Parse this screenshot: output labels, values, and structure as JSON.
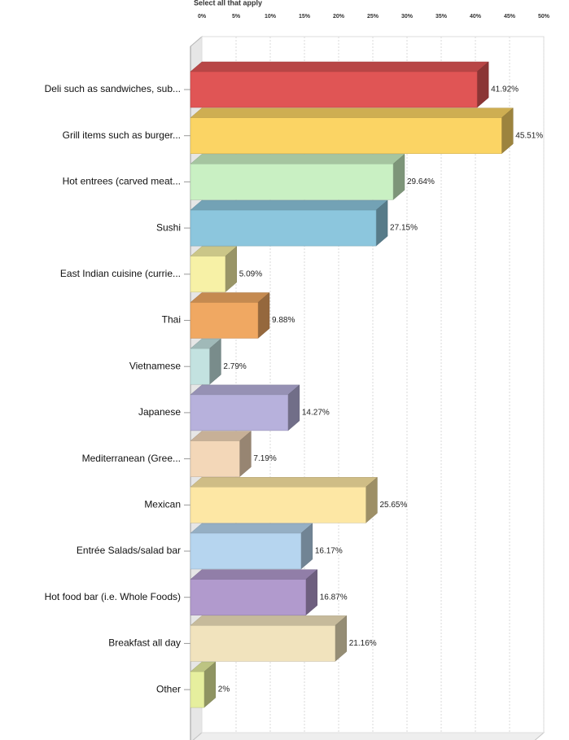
{
  "chart_data": {
    "type": "bar",
    "orientation": "horizontal",
    "title": "",
    "top_caption": "Select all that apply",
    "xlabel": "",
    "ylabel": "",
    "xlim": [
      0,
      50
    ],
    "x_ticks": [
      "0%",
      "5%",
      "10%",
      "15%",
      "20%",
      "25%",
      "30%",
      "35%",
      "40%",
      "45%",
      "50%"
    ],
    "grid": true,
    "legend": "none",
    "categories": [
      "Deli such as sandwiches, sub...",
      "Grill items such as burger...",
      "Hot entrees (carved meat...",
      "Sushi",
      "East Indian cuisine (currie...",
      "Thai",
      "Vietnamese",
      "Japanese",
      "Mediterranean (Gree...",
      "Mexican",
      "Entrée Salads/salad bar",
      "Hot food bar (i.e. Whole Foods)",
      "Breakfast all day",
      "Other"
    ],
    "values": [
      41.92,
      45.51,
      29.64,
      27.15,
      5.09,
      9.88,
      2.79,
      14.27,
      7.19,
      25.65,
      16.17,
      16.87,
      21.16,
      2
    ],
    "value_labels": [
      "41.92%",
      "45.51%",
      "29.64%",
      "27.15%",
      "5.09%",
      "9.88%",
      "2.79%",
      "14.27%",
      "7.19%",
      "25.65%",
      "16.17%",
      "16.87%",
      "21.16%",
      "2%"
    ],
    "colors": [
      "#e05555",
      "#fbd464",
      "#c9f0c3",
      "#8cc6dd",
      "#f7f1a6",
      "#f0a862",
      "#c3e2e0",
      "#b7b1dc",
      "#f3d7b8",
      "#fde7a4",
      "#b6d5ef",
      "#b19acd",
      "#f1e3bd",
      "#e6ef9e"
    ]
  }
}
